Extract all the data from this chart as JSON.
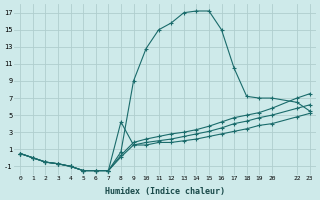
{
  "xlabel": "Humidex (Indice chaleur)",
  "background_color": "#ceeaea",
  "grid_color": "#b0cece",
  "line_color": "#1a6b6b",
  "xlim": [
    -0.5,
    23.5
  ],
  "ylim": [
    -2,
    18
  ],
  "xticks": [
    0,
    1,
    2,
    3,
    4,
    5,
    6,
    7,
    8,
    9,
    10,
    11,
    12,
    13,
    14,
    15,
    16,
    17,
    18,
    19,
    20,
    22,
    23
  ],
  "yticks": [
    -1,
    1,
    3,
    5,
    7,
    9,
    11,
    13,
    15,
    17
  ],
  "series_peak_x": [
    0,
    1,
    2,
    3,
    4,
    5,
    6,
    7,
    8,
    9,
    10,
    11,
    12,
    13,
    14,
    15,
    16,
    17,
    18,
    19,
    20,
    22,
    23
  ],
  "series_peak_y": [
    0.5,
    0.0,
    -0.5,
    -0.7,
    -1.0,
    -1.5,
    -1.5,
    -1.5,
    0.7,
    9.0,
    12.8,
    15.0,
    15.8,
    17.0,
    17.2,
    17.2,
    15.0,
    10.5,
    7.2,
    7.0,
    7.0,
    6.5,
    5.5
  ],
  "series_mid_x": [
    0,
    1,
    2,
    3,
    4,
    5,
    6,
    7,
    8,
    9,
    10,
    11,
    12,
    13,
    14,
    15,
    16,
    17,
    18,
    19,
    20,
    22,
    23
  ],
  "series_mid_y": [
    0.5,
    0.0,
    -0.5,
    -0.7,
    -1.0,
    -1.5,
    -1.5,
    -1.5,
    0.3,
    1.8,
    2.2,
    2.5,
    2.8,
    3.0,
    3.3,
    3.7,
    4.2,
    4.7,
    5.0,
    5.3,
    5.8,
    7.0,
    7.5
  ],
  "series_flat2_x": [
    0,
    1,
    2,
    3,
    4,
    5,
    6,
    7,
    8,
    9,
    10,
    11,
    12,
    13,
    14,
    15,
    16,
    17,
    18,
    19,
    20,
    22,
    23
  ],
  "series_flat2_y": [
    0.5,
    0.0,
    -0.5,
    -0.7,
    -1.0,
    -1.5,
    -1.5,
    -1.5,
    0.1,
    1.5,
    1.8,
    2.0,
    2.2,
    2.5,
    2.8,
    3.1,
    3.5,
    4.0,
    4.3,
    4.7,
    5.0,
    5.8,
    6.2
  ],
  "series_flat1_x": [
    0,
    1,
    2,
    3,
    4,
    5,
    6,
    7,
    8,
    9,
    10,
    11,
    12,
    13,
    14,
    15,
    16,
    17,
    18,
    19,
    20,
    22,
    23
  ],
  "series_flat1_y": [
    0.5,
    0.0,
    -0.5,
    -0.7,
    -1.0,
    -1.5,
    -1.5,
    -1.5,
    4.2,
    1.5,
    1.5,
    1.8,
    1.8,
    2.0,
    2.2,
    2.5,
    2.8,
    3.1,
    3.4,
    3.8,
    4.0,
    4.8,
    5.2
  ]
}
